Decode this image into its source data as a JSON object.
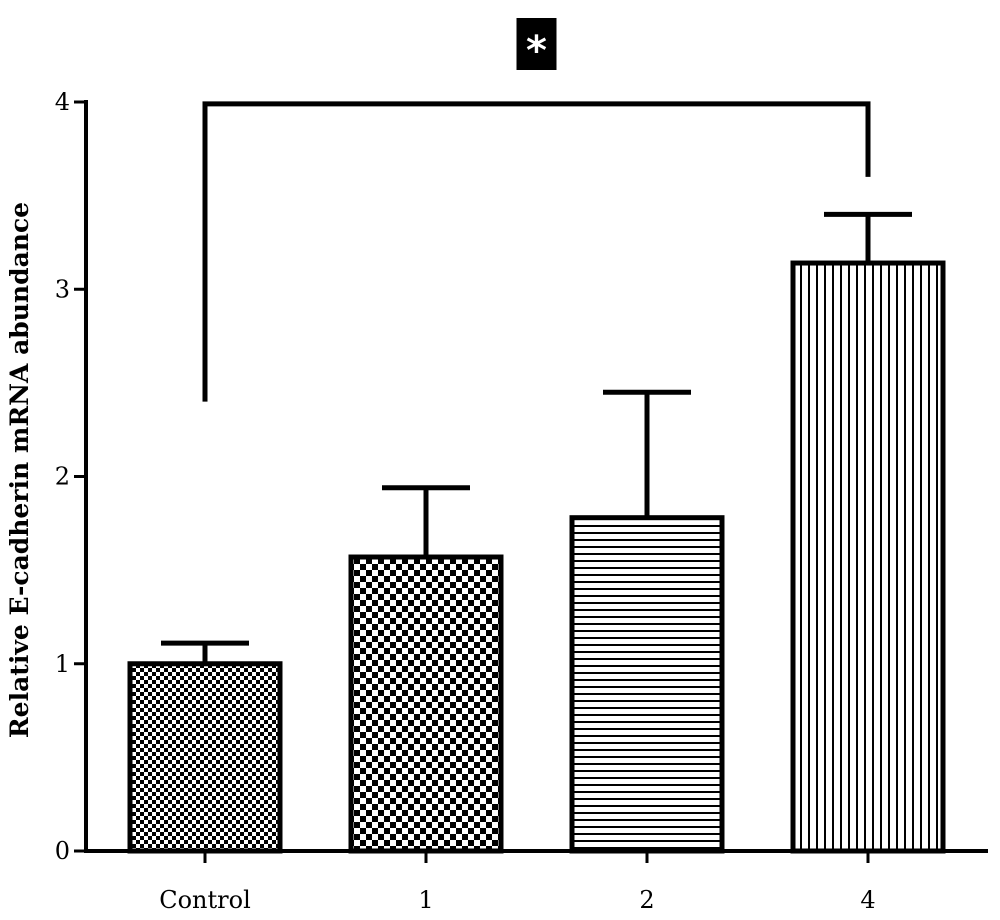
{
  "chart_data": {
    "type": "bar",
    "title": "",
    "xlabel": "",
    "ylabel": "Relative E-cadherin mRNA abundance",
    "categories": [
      "Control",
      "1",
      "2",
      "4"
    ],
    "values": [
      1.0,
      1.57,
      1.78,
      3.14
    ],
    "errors": [
      0.11,
      0.37,
      0.67,
      0.26
    ],
    "patterns": [
      "fine-checker",
      "checker",
      "horizontal-lines",
      "vertical-lines"
    ],
    "ylim": [
      0,
      4
    ],
    "yticks": [
      "0",
      "1",
      "2",
      "3",
      "4"
    ],
    "grid": false,
    "significance": {
      "from": "Control",
      "to": "4",
      "label": "*"
    }
  }
}
